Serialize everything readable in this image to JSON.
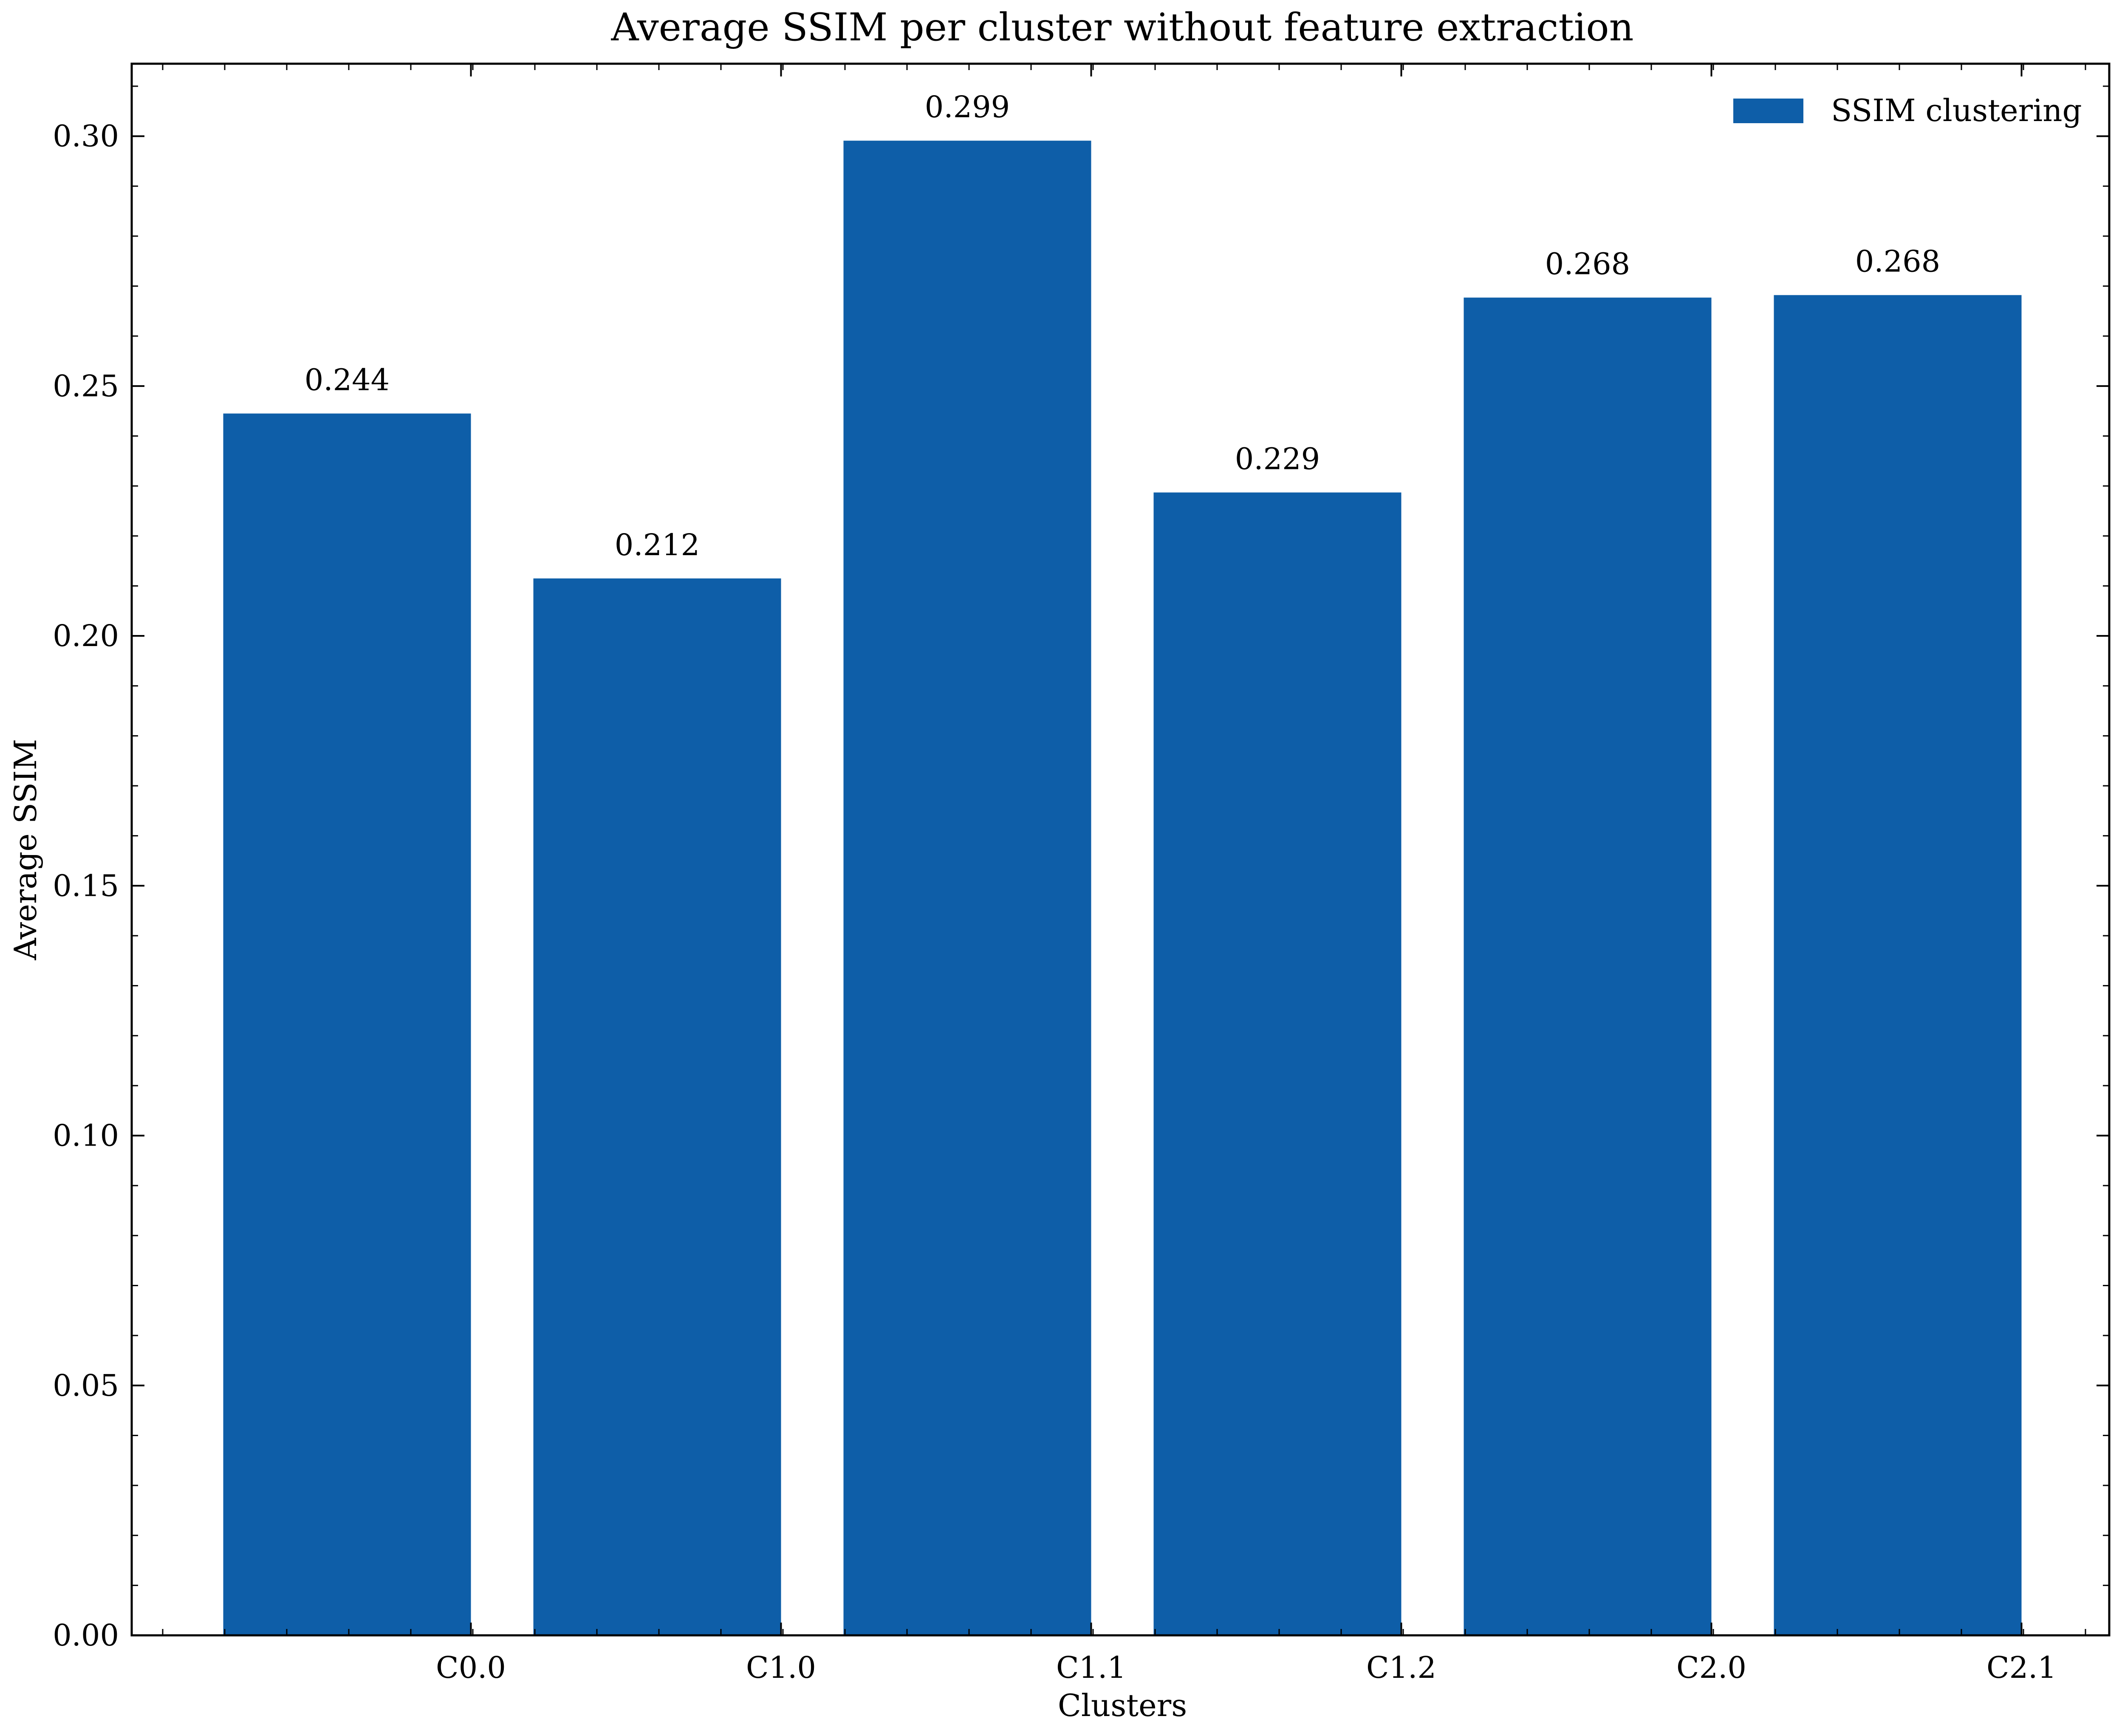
{
  "chart_data": {
    "type": "bar",
    "title": "Average SSIM per cluster without feature extraction",
    "xlabel": "Clusters",
    "ylabel": "Average SSIM",
    "categories": [
      "C0.0",
      "C1.0",
      "C1.1",
      "C1.2",
      "C2.0",
      "C2.1"
    ],
    "series": [
      {
        "name": "SSIM clustering",
        "color": "#0e5ea8",
        "values": [
          0.2445,
          0.2115,
          0.2991,
          0.2287,
          0.2677,
          0.2682
        ],
        "labels": [
          "0.244",
          "0.212",
          "0.299",
          "0.229",
          "0.268",
          "0.268"
        ]
      }
    ],
    "ylim": [
      0,
      0.3145
    ],
    "yticks": [
      0.0,
      0.05,
      0.1,
      0.15,
      0.2,
      0.25,
      0.3
    ],
    "ytick_labels": [
      "0.00",
      "0.05",
      "0.10",
      "0.15",
      "0.20",
      "0.25",
      "0.30"
    ],
    "grid": false,
    "legend_position": "top-right"
  }
}
